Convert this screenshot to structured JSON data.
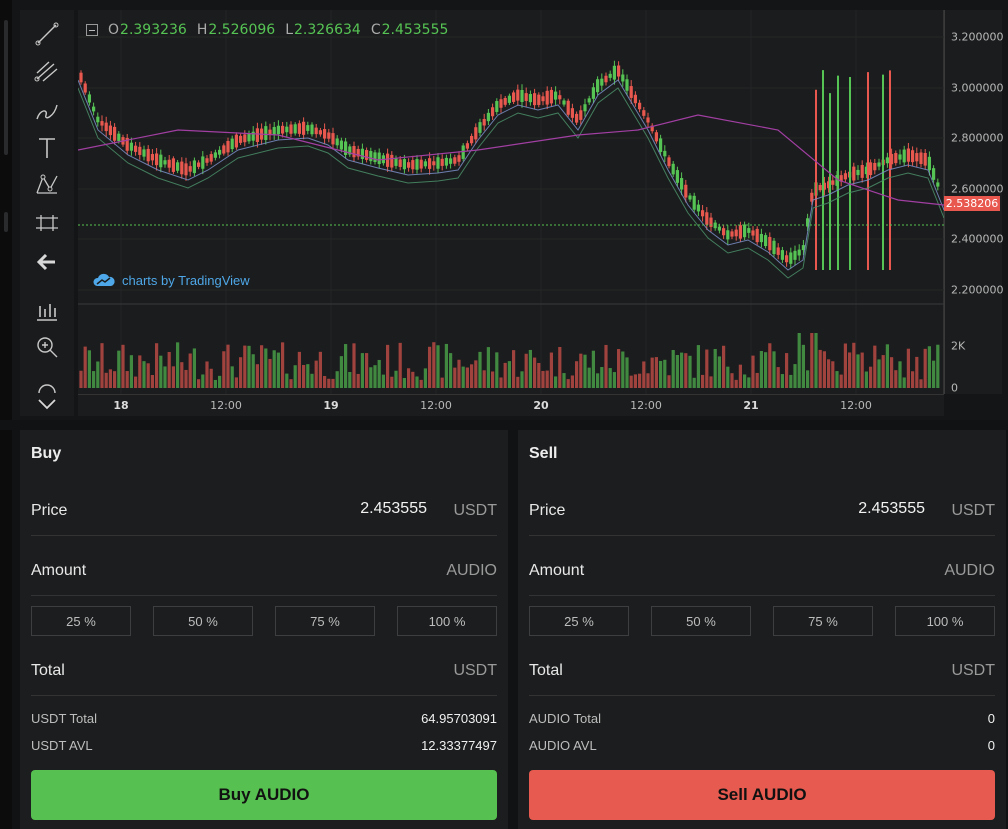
{
  "chart": {
    "ohlc": [
      {
        "key": "O",
        "value": "2.393236"
      },
      {
        "key": "H",
        "value": "2.526096"
      },
      {
        "key": "L",
        "value": "2.326634"
      },
      {
        "key": "C",
        "value": "2.453555"
      }
    ],
    "tv_label": "charts by TradingView",
    "price_ticks": [
      "3.200000",
      "3.000000",
      "2.800000",
      "2.600000",
      "2.400000",
      "2.200000"
    ],
    "last_price_tag": "2.538206",
    "volume_ticks": [
      "2K",
      "0"
    ],
    "time_ticks": [
      "18",
      "12:00",
      "19",
      "12:00",
      "20",
      "12:00",
      "21",
      "12:00"
    ],
    "tools": [
      "trend-line-icon",
      "pitchfork-icon",
      "brush-icon",
      "text-icon",
      "pattern-icon",
      "measure-icon",
      "back-arrow-icon",
      "chart-type-icon",
      "zoom-icon",
      "magnet-icon",
      "chevron-down-icon"
    ],
    "colors": {
      "up": "#56c454",
      "down": "#e8584f",
      "ma_purple": "#a13fa3",
      "ma_blue": "#7a8fc8",
      "ma_green": "#4a8f6a"
    }
  },
  "buy": {
    "title": "Buy",
    "price_label": "Price",
    "price_value": "2.453555",
    "price_unit": "USDT",
    "amount_label": "Amount",
    "amount_unit": "AUDIO",
    "pcts": [
      "25 %",
      "50 %",
      "75 %",
      "100 %"
    ],
    "total_label": "Total",
    "total_unit": "USDT",
    "stat1_label": "USDT Total",
    "stat1_value": "64.95703091",
    "stat2_label": "USDT AVL",
    "stat2_value": "12.33377497",
    "button": "Buy AUDIO"
  },
  "sell": {
    "title": "Sell",
    "price_label": "Price",
    "price_value": "2.453555",
    "price_unit": "USDT",
    "amount_label": "Amount",
    "amount_unit": "AUDIO",
    "pcts": [
      "25 %",
      "50 %",
      "75 %",
      "100 %"
    ],
    "total_label": "Total",
    "total_unit": "USDT",
    "stat1_label": "AUDIO Total",
    "stat1_value": "0",
    "stat2_label": "AUDIO AVL",
    "stat2_value": "0",
    "button": "Sell AUDIO"
  }
}
